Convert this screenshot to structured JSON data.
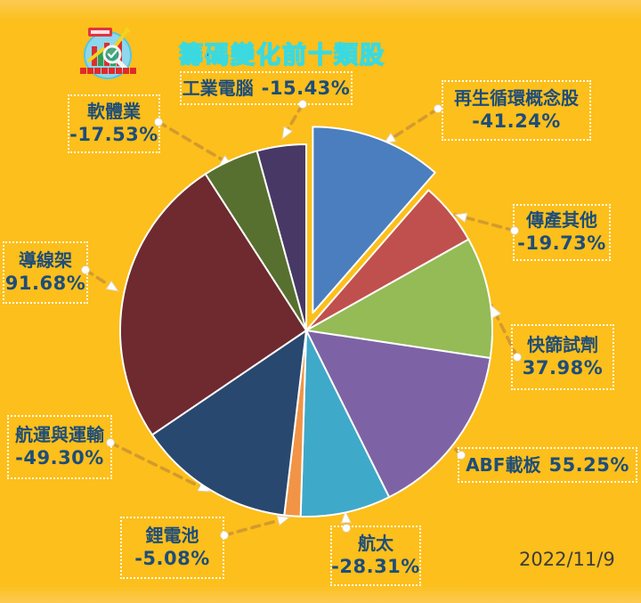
{
  "page": {
    "background_color": "#FCBF1B",
    "date": "2022/11/9"
  },
  "header": {
    "title": "籌碼變化前十類股",
    "title_color": "#C00D33",
    "title_outline_color": "#3BD9DF"
  },
  "logo": {
    "name": "stock-chart-magnifier-logo"
  },
  "style": {
    "connector_color": "#D49A2E",
    "callout_border_color": "#FFFFFF",
    "callout_text_color": "#1E4D79",
    "slice_stroke_color": "#FFFFFF"
  },
  "chart_data": {
    "type": "pie",
    "title": "籌碼變化前十類股",
    "date_label": "2022/11/9",
    "unit": "%",
    "angle_mapping": "slice angle proportional to |value|, clockwise from 12 o'clock",
    "legend_position": "callout labels around pie with dashed arrows",
    "grid": false,
    "slices": [
      {
        "label": "再生循環概念股",
        "value": -41.24,
        "pct": "-41.24%",
        "color": "#4A7EBE",
        "exploded": true
      },
      {
        "label": "傳產其他",
        "value": -19.73,
        "pct": "-19.73%",
        "color": "#C0504D",
        "exploded": false
      },
      {
        "label": "快篩試劑",
        "value": 37.98,
        "pct": "37.98%",
        "color": "#94BB56",
        "exploded": false
      },
      {
        "label": "ABF載板",
        "value": 55.25,
        "pct": "55.25%",
        "color": "#7D63A5",
        "exploded": false
      },
      {
        "label": "航太",
        "value": -28.31,
        "pct": "-28.31%",
        "color": "#3FA9C9",
        "exploded": false
      },
      {
        "label": "鋰電池",
        "value": -5.08,
        "pct": "-5.08%",
        "color": "#F29446",
        "exploded": false
      },
      {
        "label": "航運與運輸",
        "value": -49.3,
        "pct": "-49.30%",
        "color": "#28486F",
        "exploded": false
      },
      {
        "label": "導線架",
        "value": 91.68,
        "pct": "91.68%",
        "color": "#6E2A2E",
        "exploded": false
      },
      {
        "label": "軟體業",
        "value": -17.53,
        "pct": "-17.53%",
        "color": "#57702F",
        "exploded": false
      },
      {
        "label": "工業電腦",
        "value": -15.43,
        "pct": "-15.43%",
        "color": "#473866",
        "exploded": false
      }
    ]
  }
}
